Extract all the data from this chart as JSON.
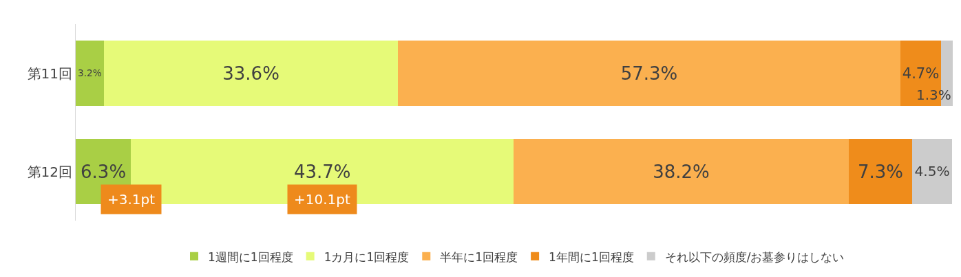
{
  "chart_data": {
    "type": "bar",
    "orientation": "horizontal",
    "stacked": true,
    "categories": [
      "第11回",
      "第12回"
    ],
    "series": [
      {
        "name": "1週間に1回程度",
        "color": "#a9cf45",
        "values": [
          3.2,
          6.3
        ],
        "value_labels": [
          "3.2%",
          "6.3%"
        ]
      },
      {
        "name": "1カ月に1回程度",
        "color": "#e6fa78",
        "values": [
          33.6,
          43.7
        ],
        "value_labels": [
          "33.6%",
          "43.7%"
        ]
      },
      {
        "name": "半年に1回程度",
        "color": "#fbb04f",
        "values": [
          57.3,
          38.2
        ],
        "value_labels": [
          "57.3%",
          "38.2%"
        ]
      },
      {
        "name": "1年間に1回程度",
        "color": "#ef8c1b",
        "values": [
          4.7,
          7.3
        ],
        "value_labels": [
          "4.7%",
          "7.3%"
        ]
      },
      {
        "name": "それ以下の頻度/お墓参りはしない",
        "color": "#cccccc",
        "values": [
          1.3,
          4.5
        ],
        "value_labels": [
          "1.3%",
          "4.5%"
        ]
      }
    ],
    "legend": "bottom",
    "grid": false,
    "annotations": [
      "+3.1pt",
      "+10.1pt"
    ]
  }
}
